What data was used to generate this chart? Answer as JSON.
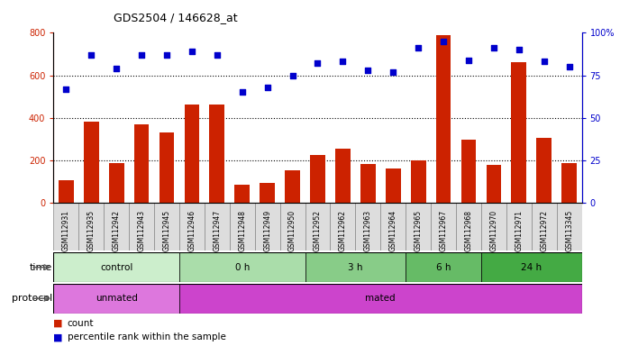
{
  "title": "GDS2504 / 146628_at",
  "samples": [
    "GSM112931",
    "GSM112935",
    "GSM112942",
    "GSM112943",
    "GSM112945",
    "GSM112946",
    "GSM112947",
    "GSM112948",
    "GSM112949",
    "GSM112950",
    "GSM112952",
    "GSM112962",
    "GSM112963",
    "GSM112964",
    "GSM112965",
    "GSM112967",
    "GSM112968",
    "GSM112970",
    "GSM112971",
    "GSM112972",
    "GSM113345"
  ],
  "counts": [
    105,
    380,
    185,
    370,
    330,
    460,
    460,
    85,
    90,
    150,
    225,
    255,
    180,
    160,
    200,
    790,
    295,
    175,
    660,
    305,
    185
  ],
  "percentiles": [
    67,
    87,
    79,
    87,
    87,
    89,
    87,
    65,
    68,
    75,
    82,
    83,
    78,
    77,
    91,
    95,
    84,
    91,
    90,
    83,
    80
  ],
  "left_ylim": [
    0,
    800
  ],
  "right_ylim": [
    0,
    100
  ],
  "left_yticks": [
    0,
    200,
    400,
    600,
    800
  ],
  "right_yticks": [
    0,
    25,
    50,
    75,
    100
  ],
  "right_yticklabels": [
    "0",
    "25",
    "50",
    "75",
    "100%"
  ],
  "bar_color": "#cc2200",
  "dot_color": "#0000cc",
  "grid_color": "#000000",
  "time_groups": [
    {
      "label": "control",
      "start": 0,
      "end": 5,
      "color": "#cceecc"
    },
    {
      "label": "0 h",
      "start": 5,
      "end": 10,
      "color": "#aaddaa"
    },
    {
      "label": "3 h",
      "start": 10,
      "end": 14,
      "color": "#88cc88"
    },
    {
      "label": "6 h",
      "start": 14,
      "end": 17,
      "color": "#66bb66"
    },
    {
      "label": "24 h",
      "start": 17,
      "end": 21,
      "color": "#44aa44"
    }
  ],
  "protocol_groups": [
    {
      "label": "unmated",
      "start": 0,
      "end": 5,
      "color": "#dd77dd"
    },
    {
      "label": "mated",
      "start": 5,
      "end": 21,
      "color": "#cc44cc"
    }
  ],
  "legend_count_label": "count",
  "legend_percentile_label": "percentile rank within the sample",
  "time_label": "time",
  "protocol_label": "protocol",
  "sample_box_color": "#dddddd",
  "sample_box_edge": "#888888"
}
